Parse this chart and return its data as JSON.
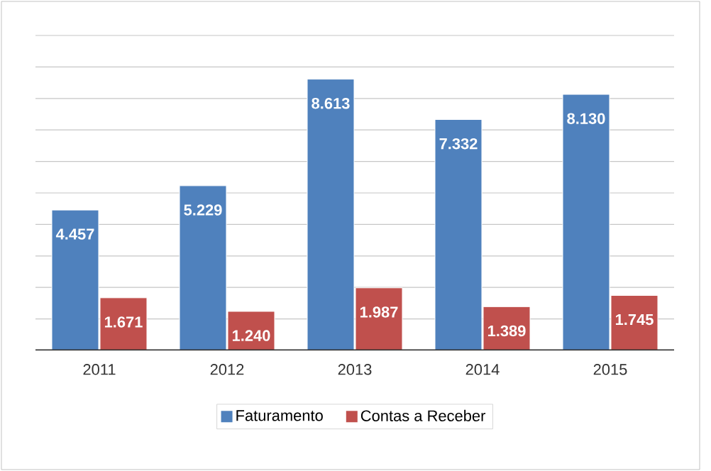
{
  "chart_data": {
    "type": "bar",
    "categories": [
      "2011",
      "2012",
      "2013",
      "2014",
      "2015"
    ],
    "series": [
      {
        "name": "Faturamento",
        "color": "#4f81bd",
        "values": [
          4457,
          5229,
          8613,
          7332,
          8130
        ],
        "value_labels": [
          "4.457",
          "5.229",
          "8.613",
          "7.332",
          "8.130"
        ]
      },
      {
        "name": "Contas a Receber",
        "color": "#c0504d",
        "values": [
          1671,
          1240,
          1987,
          1389,
          1745
        ],
        "value_labels": [
          "1.671",
          "1.240",
          "1.987",
          "1.389",
          "1.745"
        ]
      }
    ],
    "ylim": [
      0,
      10000
    ],
    "yticks": [
      {
        "value": 0,
        "label": null
      },
      {
        "value": 1000,
        "label": null
      },
      {
        "value": 2000,
        "label": null
      },
      {
        "value": 3000,
        "label": null
      },
      {
        "value": 4000,
        "label": null
      },
      {
        "value": 5000,
        "label": null
      },
      {
        "value": 6000,
        "label": null
      },
      {
        "value": 7000,
        "label": null
      },
      {
        "value": 8000,
        "label": null
      },
      {
        "value": 9000,
        "label": null
      },
      {
        "value": 10000,
        "label": null
      }
    ],
    "grid": "y",
    "legend": "bottom",
    "tick_labels": "x"
  }
}
